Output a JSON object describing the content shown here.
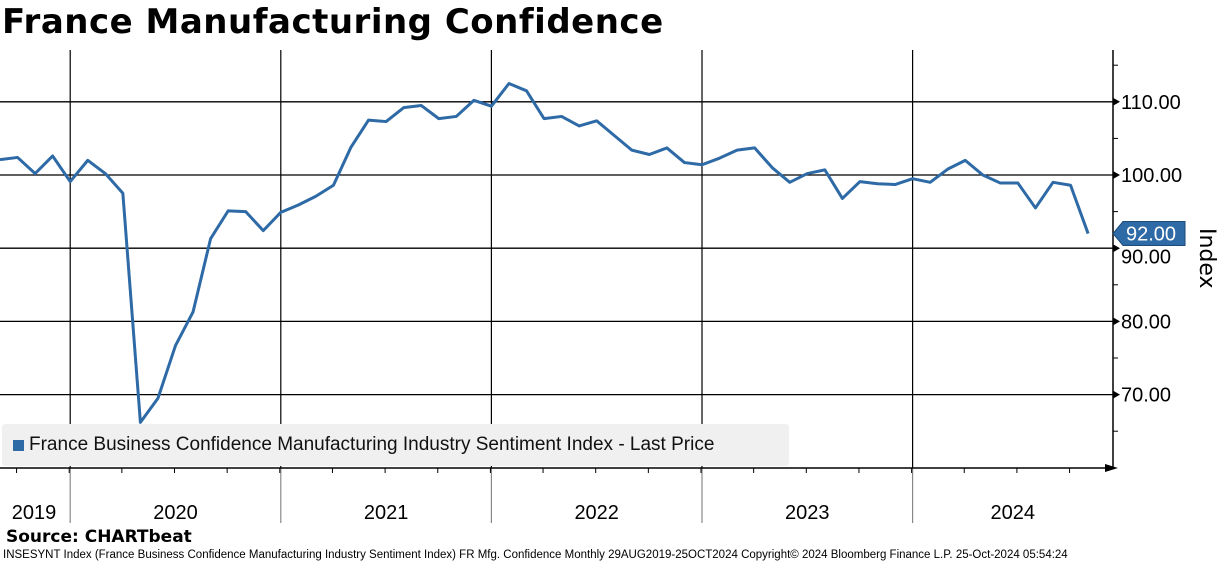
{
  "title": "France Manufacturing Confidence",
  "source": "Source: CHARTbeat",
  "footer": "INSESYNT Index (France Business Confidence Manufacturing Industry Sentiment Index) FR Mfg. Confidence  Monthly 29AUG2019-25OCT2024  Copyright© 2024 Bloomberg Finance L.P.  25-Oct-2024 05:54:24",
  "colors": {
    "series": "#2e6aa6"
  },
  "chart_data": {
    "type": "line",
    "title": "France Manufacturing Confidence",
    "ylabel": "Index",
    "ylim": [
      60,
      117
    ],
    "yticks": [
      "70.00",
      "80.00",
      "90.00",
      "100.00",
      "110.00"
    ],
    "ytick_values": [
      70,
      80,
      90,
      100,
      110
    ],
    "xtick_labels": [
      "2019",
      "2020",
      "2021",
      "2022",
      "2023",
      "2024"
    ],
    "legend": {
      "label": "France Business Confidence Manufacturing Industry Sentiment Index - Last Price",
      "placement": "bottom-left"
    },
    "last_value_label": "92.00",
    "start": "2019-08",
    "end": "2024-10",
    "frequency": "monthly",
    "series": [
      {
        "name": "France Business Confidence Manufacturing Industry Sentiment Index - Last Price",
        "values": [
          102.1,
          102.4,
          100.2,
          102.6,
          99.1,
          102.0,
          100.2,
          97.5,
          66.2,
          69.5,
          76.7,
          81.3,
          91.3,
          95.1,
          95.0,
          92.4,
          94.9,
          95.9,
          97.1,
          98.6,
          103.8,
          107.5,
          107.3,
          109.2,
          109.5,
          107.7,
          108.0,
          110.2,
          109.4,
          112.5,
          111.5,
          107.7,
          108.0,
          106.7,
          107.4,
          105.4,
          103.4,
          102.8,
          103.7,
          101.7,
          101.4,
          102.3,
          103.4,
          103.7,
          101.0,
          99.0,
          100.2,
          100.7,
          96.8,
          99.1,
          98.8,
          98.7,
          99.5,
          99.0,
          100.8,
          102.0,
          100.0,
          98.9,
          98.9,
          95.5,
          99.0,
          98.6,
          92.0
        ]
      }
    ]
  }
}
